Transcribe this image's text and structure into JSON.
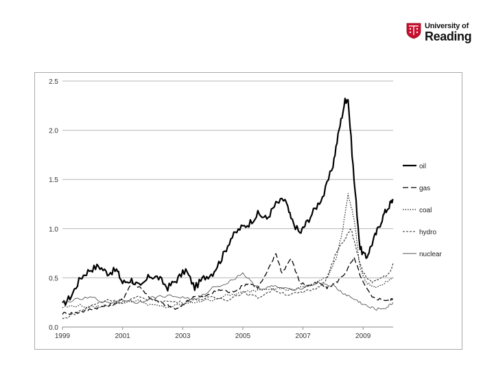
{
  "logo": {
    "line1": "University of",
    "line2": "Reading",
    "crest_color": "#c8102e"
  },
  "chart_data": {
    "type": "line",
    "title": "",
    "xlabel": "",
    "ylabel": "",
    "xlim": [
      1999,
      2010
    ],
    "ylim": [
      0,
      2.5
    ],
    "y_ticks": [
      "0.0",
      "0.5",
      "1.0",
      "1.5",
      "2.0",
      "2.5"
    ],
    "x_ticks": [
      "1999",
      "2001",
      "2003",
      "2005",
      "2007",
      "2009"
    ],
    "grid": "horizontal",
    "legend_position": "right",
    "series": [
      {
        "name": "oil",
        "color": "#000000",
        "dash": "solid",
        "width": 2.2,
        "x": [
          1999.0,
          1999.3,
          1999.6,
          1999.9,
          2000.2,
          2000.5,
          2000.8,
          2001.0,
          2001.3,
          2001.6,
          2001.9,
          2002.2,
          2002.5,
          2002.8,
          2003.1,
          2003.4,
          2003.7,
          2004.0,
          2004.3,
          2004.6,
          2004.9,
          2005.2,
          2005.5,
          2005.8,
          2006.1,
          2006.4,
          2006.6,
          2006.9,
          2007.1,
          2007.4,
          2007.7,
          2008.0,
          2008.2,
          2008.4,
          2008.5,
          2008.7,
          2008.9,
          2009.1,
          2009.3,
          2009.5,
          2009.7,
          2009.9,
          2010.0
        ],
        "y": [
          0.22,
          0.32,
          0.5,
          0.58,
          0.62,
          0.55,
          0.58,
          0.45,
          0.48,
          0.4,
          0.52,
          0.5,
          0.4,
          0.48,
          0.58,
          0.4,
          0.5,
          0.55,
          0.7,
          0.9,
          1.0,
          1.05,
          1.15,
          1.1,
          1.25,
          1.3,
          1.1,
          0.95,
          1.05,
          1.2,
          1.35,
          1.65,
          2.0,
          2.3,
          2.32,
          1.5,
          0.8,
          0.7,
          0.85,
          1.0,
          1.15,
          1.25,
          1.3
        ]
      },
      {
        "name": "gas",
        "color": "#000000",
        "dash": "8,4",
        "width": 1.3,
        "x": [
          1999.0,
          1999.3,
          1999.6,
          1999.9,
          2000.2,
          2000.5,
          2000.8,
          2001.0,
          2001.3,
          2001.6,
          2001.9,
          2002.2,
          2002.5,
          2002.8,
          2003.1,
          2003.4,
          2003.7,
          2004.0,
          2004.3,
          2004.6,
          2004.9,
          2005.2,
          2005.5,
          2005.8,
          2006.1,
          2006.3,
          2006.6,
          2006.9,
          2007.2,
          2007.5,
          2007.8,
          2008.1,
          2008.4,
          2008.7,
          2009.0,
          2009.3,
          2009.6,
          2009.9,
          2010.0
        ],
        "y": [
          0.14,
          0.14,
          0.15,
          0.18,
          0.2,
          0.22,
          0.25,
          0.28,
          0.45,
          0.4,
          0.3,
          0.25,
          0.22,
          0.18,
          0.25,
          0.32,
          0.3,
          0.35,
          0.38,
          0.35,
          0.4,
          0.45,
          0.4,
          0.55,
          0.75,
          0.55,
          0.7,
          0.45,
          0.42,
          0.45,
          0.4,
          0.45,
          0.55,
          0.7,
          0.45,
          0.3,
          0.28,
          0.27,
          0.3
        ]
      },
      {
        "name": "coal",
        "color": "#222222",
        "dash": "1.5,2",
        "width": 1.2,
        "x": [
          1999.0,
          1999.5,
          2000.0,
          2000.5,
          2001.0,
          2001.5,
          2002.0,
          2002.5,
          2003.0,
          2003.5,
          2004.0,
          2004.5,
          2005.0,
          2005.5,
          2006.0,
          2006.5,
          2007.0,
          2007.4,
          2007.8,
          2008.1,
          2008.3,
          2008.5,
          2008.7,
          2008.9,
          2009.1,
          2009.4,
          2009.7,
          2010.0
        ],
        "y": [
          0.2,
          0.22,
          0.2,
          0.22,
          0.25,
          0.27,
          0.22,
          0.2,
          0.23,
          0.26,
          0.28,
          0.32,
          0.35,
          0.38,
          0.4,
          0.38,
          0.4,
          0.45,
          0.5,
          0.7,
          0.95,
          1.35,
          1.1,
          0.6,
          0.45,
          0.4,
          0.45,
          0.5
        ]
      },
      {
        "name": "hydro",
        "color": "#333333",
        "dash": "3,2",
        "width": 1.1,
        "x": [
          1999.0,
          1999.5,
          2000.0,
          2000.5,
          2001.0,
          2001.5,
          2002.0,
          2002.5,
          2003.0,
          2003.5,
          2004.0,
          2004.5,
          2005.0,
          2005.5,
          2006.0,
          2006.5,
          2007.0,
          2007.5,
          2007.8,
          2008.1,
          2008.4,
          2008.6,
          2008.8,
          2009.0,
          2009.3,
          2009.6,
          2009.9,
          2010.0
        ],
        "y": [
          0.08,
          0.15,
          0.22,
          0.28,
          0.25,
          0.3,
          0.28,
          0.26,
          0.25,
          0.28,
          0.3,
          0.28,
          0.35,
          0.3,
          0.38,
          0.33,
          0.35,
          0.4,
          0.5,
          0.75,
          0.9,
          1.0,
          0.75,
          0.55,
          0.45,
          0.5,
          0.55,
          0.65
        ]
      },
      {
        "name": "nuclear",
        "color": "#555555",
        "dash": "solid",
        "width": 0.9,
        "x": [
          1999.0,
          1999.5,
          2000.0,
          2000.5,
          2001.0,
          2001.5,
          2002.0,
          2002.5,
          2003.0,
          2003.5,
          2004.0,
          2004.5,
          2005.0,
          2005.3,
          2005.7,
          2006.0,
          2006.5,
          2007.0,
          2007.5,
          2008.0,
          2008.3,
          2008.6,
          2008.9,
          2009.2,
          2009.5,
          2009.8,
          2010.0
        ],
        "y": [
          0.25,
          0.28,
          0.3,
          0.24,
          0.28,
          0.25,
          0.3,
          0.32,
          0.3,
          0.28,
          0.4,
          0.45,
          0.55,
          0.45,
          0.38,
          0.42,
          0.38,
          0.4,
          0.45,
          0.42,
          0.35,
          0.3,
          0.25,
          0.2,
          0.18,
          0.2,
          0.25
        ]
      }
    ]
  }
}
